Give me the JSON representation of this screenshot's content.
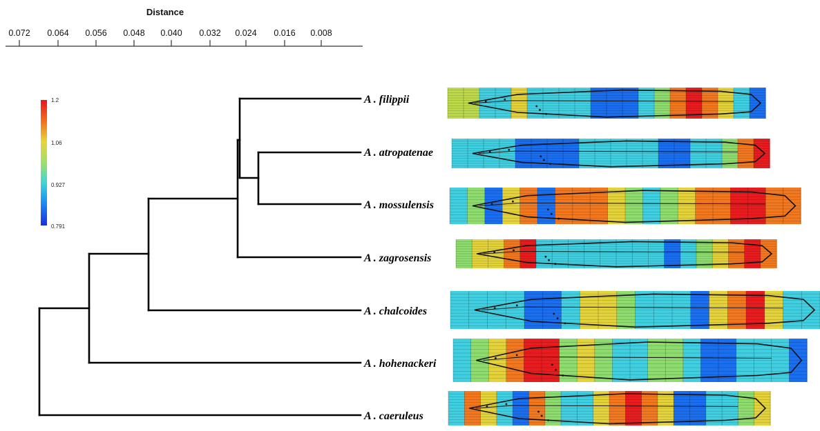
{
  "axis": {
    "title": "Distance",
    "ticks": [
      "0.072",
      "0.064",
      "0.056",
      "0.048",
      "0.040",
      "0.032",
      "0.024",
      "0.016",
      "0.008"
    ]
  },
  "colorbar": {
    "labels": [
      "1.2",
      "1.06",
      "0.927",
      "0.791"
    ],
    "colors": [
      "#e8161b",
      "#f2751f",
      "#e8d43a",
      "#9fdf6a",
      "#3fd6d6",
      "#1a8df2",
      "#1a2ee0"
    ]
  },
  "taxa": [
    {
      "name": "A . filippii",
      "stripes": [
        "yg",
        "yg",
        "c",
        "c",
        "y",
        "c",
        "c",
        "c",
        "c",
        "b",
        "b",
        "b",
        "c",
        "g",
        "o",
        "r",
        "o",
        "y",
        "c",
        "b"
      ]
    },
    {
      "name": "A . atropatenae",
      "stripes": [
        "c",
        "c",
        "c",
        "c",
        "b",
        "b",
        "b",
        "b",
        "c",
        "c",
        "c",
        "c",
        "c",
        "b",
        "b",
        "c",
        "c",
        "g",
        "o",
        "r"
      ]
    },
    {
      "name": "A . mossulensis",
      "stripes": [
        "c",
        "g",
        "b",
        "y",
        "o",
        "b",
        "o",
        "o",
        "o",
        "y",
        "g",
        "c",
        "g",
        "y",
        "o",
        "o",
        "r",
        "r",
        "o",
        "o"
      ]
    },
    {
      "name": "A . zagrosensis",
      "stripes": [
        "g",
        "y",
        "y",
        "o",
        "r",
        "c",
        "c",
        "c",
        "c",
        "c",
        "c",
        "c",
        "c",
        "b",
        "c",
        "g",
        "y",
        "o",
        "r",
        "o"
      ]
    },
    {
      "name": "A . chalcoides",
      "stripes": [
        "c",
        "c",
        "c",
        "c",
        "b",
        "b",
        "c",
        "y",
        "y",
        "g",
        "c",
        "c",
        "c",
        "b",
        "y",
        "o",
        "r",
        "y",
        "c",
        "c"
      ]
    },
    {
      "name": "A . hohenackeri",
      "stripes": [
        "c",
        "g",
        "y",
        "o",
        "r",
        "r",
        "g",
        "y",
        "g",
        "c",
        "c",
        "g",
        "g",
        "c",
        "b",
        "b",
        "c",
        "c",
        "c",
        "b"
      ]
    },
    {
      "name": "A . caeruleus",
      "stripes": [
        "c",
        "o",
        "y",
        "c",
        "b",
        "o",
        "g",
        "c",
        "c",
        "y",
        "o",
        "r",
        "o",
        "y",
        "b",
        "b",
        "c",
        "c",
        "g",
        "y"
      ]
    }
  ]
}
